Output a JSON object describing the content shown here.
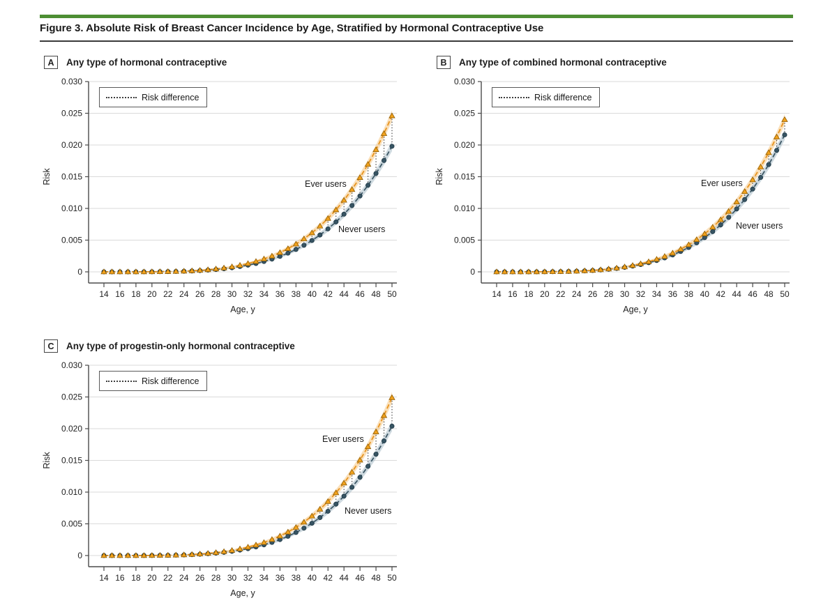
{
  "figure": {
    "title": "Figure 3. Absolute Risk of Breast Cancer Incidence by Age, Stratified by Hormonal Contraceptive Use"
  },
  "legend": {
    "label": "Risk difference"
  },
  "axes": {
    "x_label": "Age, y",
    "y_label": "Risk",
    "x_ticks": [
      14,
      16,
      18,
      20,
      22,
      24,
      26,
      28,
      30,
      32,
      34,
      36,
      38,
      40,
      42,
      44,
      46,
      48,
      50
    ],
    "y_ticks": [
      "0.030",
      "0.025",
      "0.020",
      "0.015",
      "0.010",
      "0.005",
      "0"
    ],
    "x_range": [
      14,
      50
    ],
    "y_range": [
      0,
      0.03
    ],
    "grid": "horizontal"
  },
  "colors": {
    "accent_green": "#4D8E33",
    "ever_line": "#E8941F",
    "ever_marker_fill": "#F2A21D",
    "ever_marker_edge": "#8C5A00",
    "ever_band": "#F2B45A",
    "never_line": "#3D5866",
    "never_marker_fill": "#375463",
    "never_marker_edge": "#1F3845",
    "never_band": "#9FB6C2",
    "risk_difference_line": "#3C3C3C",
    "gridline": "#DADADA",
    "axis": "#4A4A4A"
  },
  "chart_data": [
    {
      "id": "A",
      "panel_letter": "A",
      "title": "Any type of hormonal contraceptive",
      "type": "line",
      "legend_position": "top-left-inside",
      "ylim": [
        0,
        0.03
      ],
      "ci_model": {
        "type": "sqrt",
        "coefficient": 0.0055
      },
      "x": [
        14,
        15,
        16,
        17,
        18,
        19,
        20,
        21,
        22,
        23,
        24,
        25,
        26,
        27,
        28,
        29,
        30,
        31,
        32,
        33,
        34,
        35,
        36,
        37,
        38,
        39,
        40,
        41,
        42,
        43,
        44,
        45,
        46,
        47,
        48,
        49,
        50
      ],
      "series": [
        {
          "name": "Ever users",
          "marker": "triangle",
          "values": [
            0.0,
            0.0,
            0.0,
            1e-06,
            4e-06,
            8e-06,
            1.6e-05,
            2.9e-05,
            4.9e-05,
            7.8e-05,
            0.000118,
            0.000174,
            0.000247,
            0.000342,
            0.000463,
            0.000616,
            0.000804,
            0.001033,
            0.00131,
            0.001642,
            0.002035,
            0.002497,
            0.003037,
            0.003662,
            0.004383,
            0.005209,
            0.006149,
            0.007217,
            0.008422,
            0.009776,
            0.011294,
            0.012987,
            0.014869,
            0.016957,
            0.019264,
            0.021806,
            0.0246
          ]
        },
        {
          "name": "Never users",
          "marker": "circle",
          "values": [
            0.0,
            0.0,
            0.0,
            1e-06,
            3e-06,
            7e-06,
            1.3e-05,
            2.3e-05,
            3.9e-05,
            6.3e-05,
            9.5e-05,
            0.00014,
            0.000199,
            0.000275,
            0.000373,
            0.000495,
            0.000647,
            0.000832,
            0.001055,
            0.001321,
            0.001638,
            0.00201,
            0.002444,
            0.002948,
            0.003527,
            0.004192,
            0.004949,
            0.005809,
            0.006778,
            0.007869,
            0.00909,
            0.010453,
            0.011968,
            0.013648,
            0.015505,
            0.017551,
            0.0198
          ]
        }
      ]
    },
    {
      "id": "B",
      "panel_letter": "B",
      "title": "Any type of combined hormonal contraceptive",
      "type": "line",
      "legend_position": "top-left-inside",
      "ylim": [
        0,
        0.03
      ],
      "ci_model": {
        "type": "sqrt",
        "coefficient": 0.0055
      },
      "x": [
        14,
        15,
        16,
        17,
        18,
        19,
        20,
        21,
        22,
        23,
        24,
        25,
        26,
        27,
        28,
        29,
        30,
        31,
        32,
        33,
        34,
        35,
        36,
        37,
        38,
        39,
        40,
        41,
        42,
        43,
        44,
        45,
        46,
        47,
        48,
        49,
        50
      ],
      "series": [
        {
          "name": "Ever users",
          "marker": "triangle",
          "values": [
            0.0,
            0.0,
            0.0,
            1e-06,
            4e-06,
            8e-06,
            1.6e-05,
            2.8e-05,
            4.8e-05,
            7.6e-05,
            0.000116,
            0.000169,
            0.000241,
            0.000333,
            0.000452,
            0.000601,
            0.000784,
            0.001008,
            0.001278,
            0.001602,
            0.001985,
            0.002436,
            0.002963,
            0.003573,
            0.004276,
            0.005082,
            0.005999,
            0.007041,
            0.008216,
            0.009538,
            0.011018,
            0.01267,
            0.014507,
            0.016544,
            0.018794,
            0.021274,
            0.024
          ]
        },
        {
          "name": "Never users",
          "marker": "circle",
          "values": [
            0.0,
            0.0,
            0.0,
            1e-06,
            3e-06,
            7e-06,
            1.4e-05,
            2.6e-05,
            4.3e-05,
            6.8e-05,
            0.000104,
            0.000152,
            0.000217,
            0.0003,
            0.000407,
            0.00054,
            0.000706,
            0.000907,
            0.001151,
            0.001442,
            0.001787,
            0.002193,
            0.002666,
            0.003216,
            0.003848,
            0.004573,
            0.005399,
            0.006337,
            0.007395,
            0.008584,
            0.009916,
            0.011403,
            0.013056,
            0.014889,
            0.016915,
            0.019147,
            0.0216
          ]
        }
      ]
    },
    {
      "id": "C",
      "panel_letter": "C",
      "title": "Any type of progestin-only hormonal contraceptive",
      "type": "line",
      "legend_position": "top-left-inside",
      "ylim": [
        0,
        0.03
      ],
      "ci_model": {
        "type": "sqrt",
        "coefficient": 0.0055
      },
      "x": [
        14,
        15,
        16,
        17,
        18,
        19,
        20,
        21,
        22,
        23,
        24,
        25,
        26,
        27,
        28,
        29,
        30,
        31,
        32,
        33,
        34,
        35,
        36,
        37,
        38,
        39,
        40,
        41,
        42,
        43,
        44,
        45,
        46,
        47,
        48,
        49,
        50
      ],
      "series": [
        {
          "name": "Ever users",
          "marker": "triangle",
          "values": [
            0.0,
            0.0,
            0.0,
            1e-06,
            4e-06,
            8e-06,
            1.6e-05,
            2.9e-05,
            4.9e-05,
            7.9e-05,
            0.00012,
            0.000176,
            0.00025,
            0.000346,
            0.000469,
            0.000623,
            0.000813,
            0.001046,
            0.001326,
            0.001662,
            0.00206,
            0.002528,
            0.003074,
            0.003707,
            0.004436,
            0.005272,
            0.006224,
            0.007305,
            0.008524,
            0.009895,
            0.011431,
            0.013145,
            0.015051,
            0.017164,
            0.019499,
            0.022072,
            0.0249
          ]
        },
        {
          "name": "Never users",
          "marker": "circle",
          "values": [
            0.0,
            0.0,
            0.0,
            1e-06,
            3e-06,
            7e-06,
            1.3e-05,
            2.4e-05,
            4.1e-05,
            6.5e-05,
            9.8e-05,
            0.000144,
            0.000205,
            0.000283,
            0.000384,
            0.00051,
            0.000666,
            0.000857,
            0.001087,
            0.001361,
            0.001687,
            0.002071,
            0.002518,
            0.003037,
            0.003634,
            0.004319,
            0.005099,
            0.005985,
            0.006984,
            0.008107,
            0.009365,
            0.01077,
            0.012331,
            0.014062,
            0.015975,
            0.018083,
            0.0204
          ]
        }
      ]
    }
  ]
}
